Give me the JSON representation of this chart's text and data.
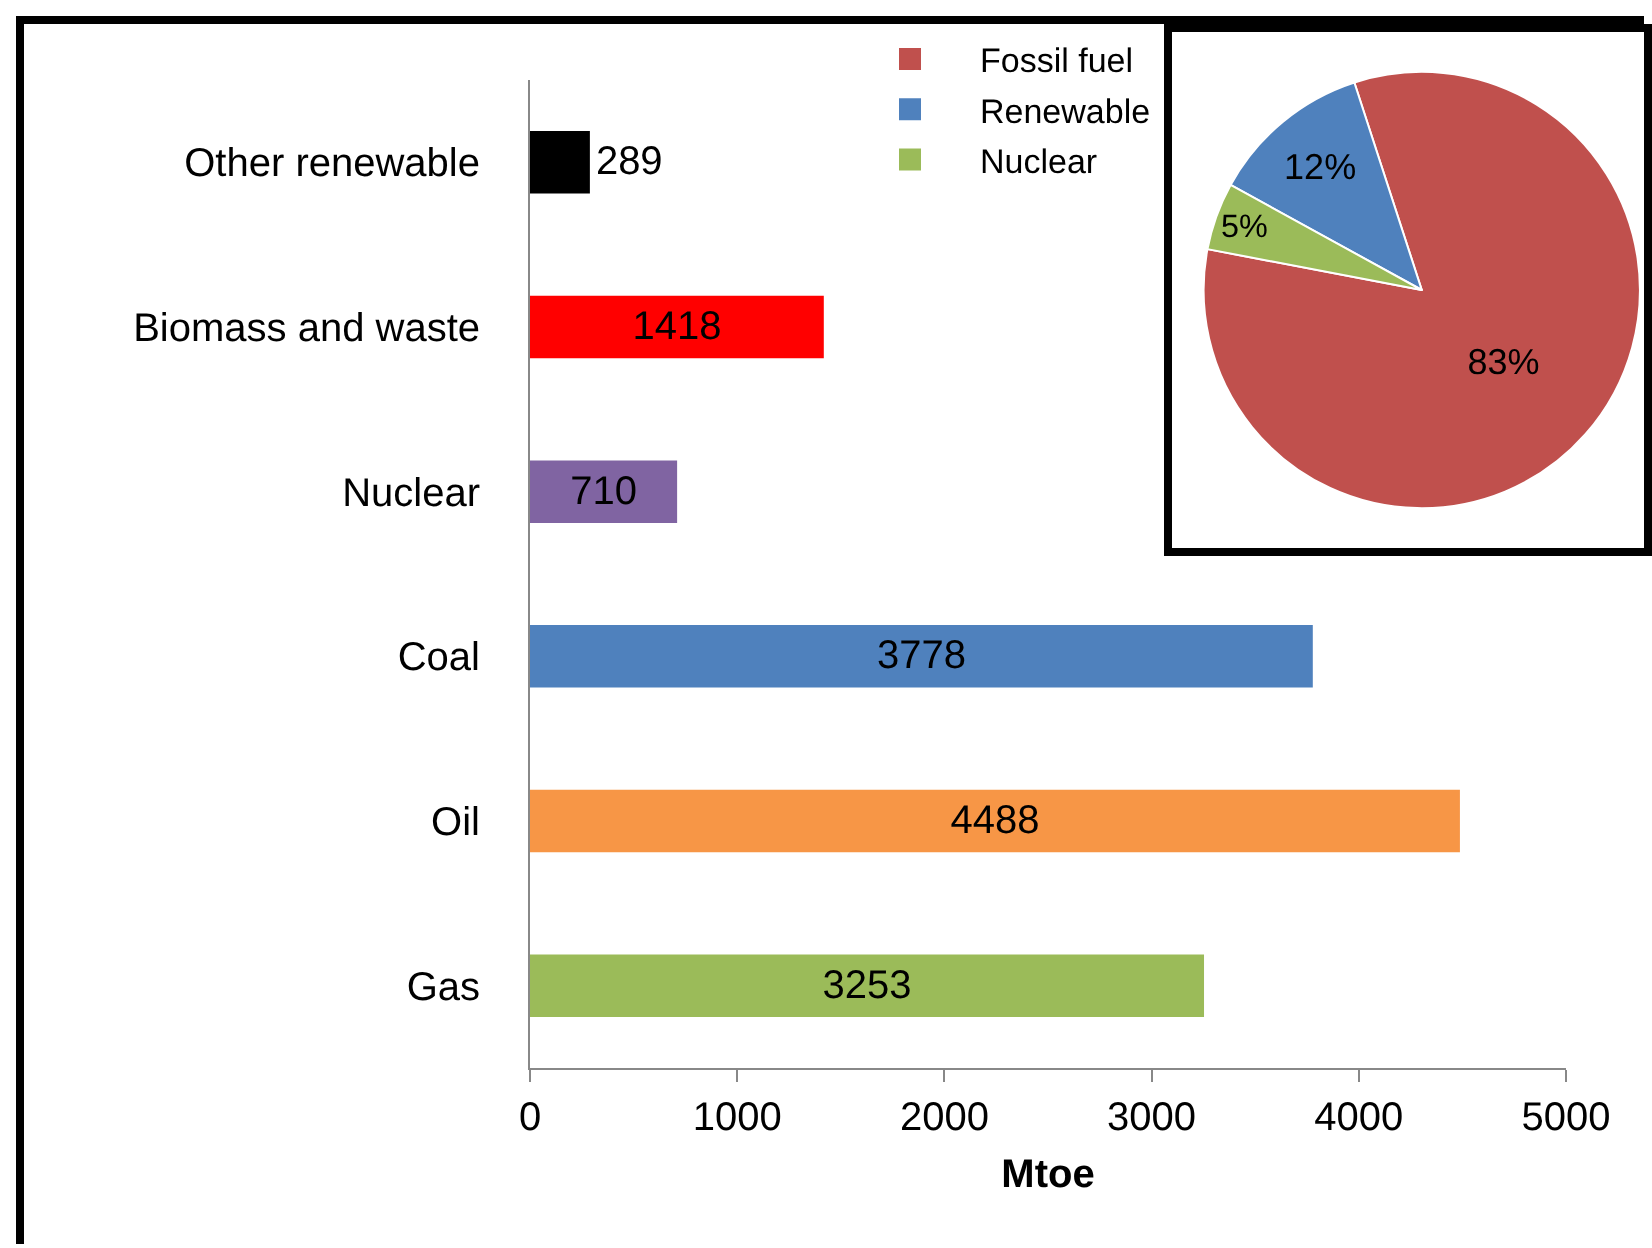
{
  "chart_data": [
    {
      "type": "bar",
      "orientation": "horizontal",
      "categories": [
        "Other renewable",
        "Biomass and waste",
        "Nuclear",
        "Coal",
        "Oil",
        "Gas"
      ],
      "values": [
        289,
        1418,
        710,
        3778,
        4488,
        3253
      ],
      "colors": [
        "#000000",
        "#ff0000",
        "#8064a2",
        "#4f81bd",
        "#f79646",
        "#9bbb59"
      ],
      "xlim": [
        0,
        5000
      ],
      "xticks": [
        0,
        1000,
        2000,
        3000,
        4000,
        5000
      ],
      "xlabel": "Mtoe",
      "data_labels": true,
      "grid": false,
      "legend": false
    },
    {
      "type": "pie",
      "categories": [
        "Fossil fuel",
        "Renewable",
        "Nuclear"
      ],
      "values": [
        83,
        12,
        5
      ],
      "colors": [
        "#c0504d",
        "#4f81bd",
        "#9bbb59"
      ],
      "value_labels": [
        "83%",
        "12%",
        "5%"
      ],
      "legend": "left"
    }
  ]
}
